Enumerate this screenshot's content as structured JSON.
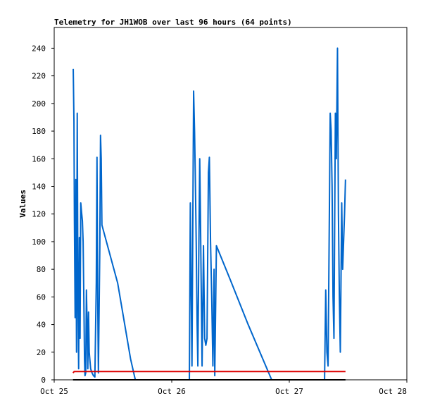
{
  "chart_data": {
    "type": "line",
    "title": "Telemetry for JH1WOB over last 96 hours (64 points)",
    "ylabel": "Values",
    "xlabel": "",
    "ylim": [
      0,
      255
    ],
    "yticks": [
      0,
      20,
      40,
      60,
      80,
      100,
      120,
      140,
      160,
      180,
      200,
      220,
      240
    ],
    "x_ticks": [
      {
        "label": "Oct 25",
        "t": 0
      },
      {
        "label": "Oct 26",
        "t": 1
      },
      {
        "label": "Oct 27",
        "t": 2
      },
      {
        "label": "Oct 28",
        "t": 3
      }
    ],
    "x_unit": "days since Oct 25 00:00",
    "xlim": [
      0,
      3
    ],
    "grid": false,
    "series": [
      {
        "name": "",
        "color": "#0066cc",
        "points": [
          [
            0.162,
            225
          ],
          [
            0.168,
            187
          ],
          [
            0.172,
            115
          ],
          [
            0.178,
            45
          ],
          [
            0.184,
            145
          ],
          [
            0.19,
            20
          ],
          [
            0.196,
            193
          ],
          [
            0.202,
            60
          ],
          [
            0.208,
            8
          ],
          [
            0.214,
            103
          ],
          [
            0.22,
            30
          ],
          [
            0.226,
            128
          ],
          [
            0.232,
            122
          ],
          [
            0.24,
            115
          ],
          [
            0.246,
            100
          ],
          [
            0.252,
            60
          ],
          [
            0.258,
            15
          ],
          [
            0.262,
            3
          ],
          [
            0.268,
            5
          ],
          [
            0.274,
            65
          ],
          [
            0.28,
            40
          ],
          [
            0.286,
            8
          ],
          [
            0.292,
            49
          ],
          [
            0.298,
            20
          ],
          [
            0.31,
            8
          ],
          [
            0.322,
            5
          ],
          [
            0.334,
            3
          ],
          [
            0.346,
            2
          ],
          [
            0.358,
            70
          ],
          [
            0.364,
            161
          ],
          [
            0.37,
            60
          ],
          [
            0.376,
            5
          ],
          [
            0.388,
            95
          ],
          [
            0.394,
            177
          ],
          [
            0.4,
            160
          ],
          [
            0.406,
            112
          ],
          [
            0.54,
            70
          ],
          [
            0.6,
            40
          ],
          [
            0.65,
            15
          ],
          [
            0.69,
            0
          ],
          [
            1.15,
            0
          ],
          [
            1.158,
            128
          ],
          [
            1.166,
            60
          ],
          [
            1.172,
            10
          ],
          [
            1.186,
            209
          ],
          [
            1.194,
            180
          ],
          [
            1.2,
            150
          ],
          [
            1.208,
            100
          ],
          [
            1.216,
            40
          ],
          [
            1.222,
            10
          ],
          [
            1.23,
            90
          ],
          [
            1.238,
            160
          ],
          [
            1.244,
            120
          ],
          [
            1.258,
            10
          ],
          [
            1.27,
            97
          ],
          [
            1.28,
            30
          ],
          [
            1.29,
            25
          ],
          [
            1.3,
            30
          ],
          [
            1.312,
            150
          ],
          [
            1.32,
            161
          ],
          [
            1.33,
            100
          ],
          [
            1.34,
            60
          ],
          [
            1.35,
            10
          ],
          [
            1.36,
            80
          ],
          [
            1.366,
            3
          ],
          [
            1.38,
            97
          ],
          [
            1.5,
            72
          ],
          [
            1.65,
            40
          ],
          [
            1.8,
            10
          ],
          [
            1.85,
            0
          ],
          [
            2.3,
            0
          ],
          [
            2.31,
            65
          ],
          [
            2.32,
            20
          ],
          [
            2.33,
            10
          ],
          [
            2.348,
            193
          ],
          [
            2.356,
            180
          ],
          [
            2.364,
            140
          ],
          [
            2.372,
            60
          ],
          [
            2.38,
            30
          ],
          [
            2.392,
            193
          ],
          [
            2.4,
            160
          ],
          [
            2.41,
            240
          ],
          [
            2.418,
            120
          ],
          [
            2.426,
            60
          ],
          [
            2.434,
            20
          ],
          [
            2.446,
            128
          ],
          [
            2.454,
            80
          ],
          [
            2.462,
            100
          ],
          [
            2.47,
            120
          ],
          [
            2.478,
            145
          ]
        ]
      },
      {
        "name": "",
        "color": "#dd0000",
        "points": [
          [
            0.16,
            5
          ],
          [
            0.17,
            6
          ],
          [
            2.478,
            6
          ]
        ]
      },
      {
        "name": "",
        "color": "#000000",
        "points": [
          [
            0.16,
            0
          ],
          [
            2.478,
            0
          ]
        ]
      }
    ]
  }
}
